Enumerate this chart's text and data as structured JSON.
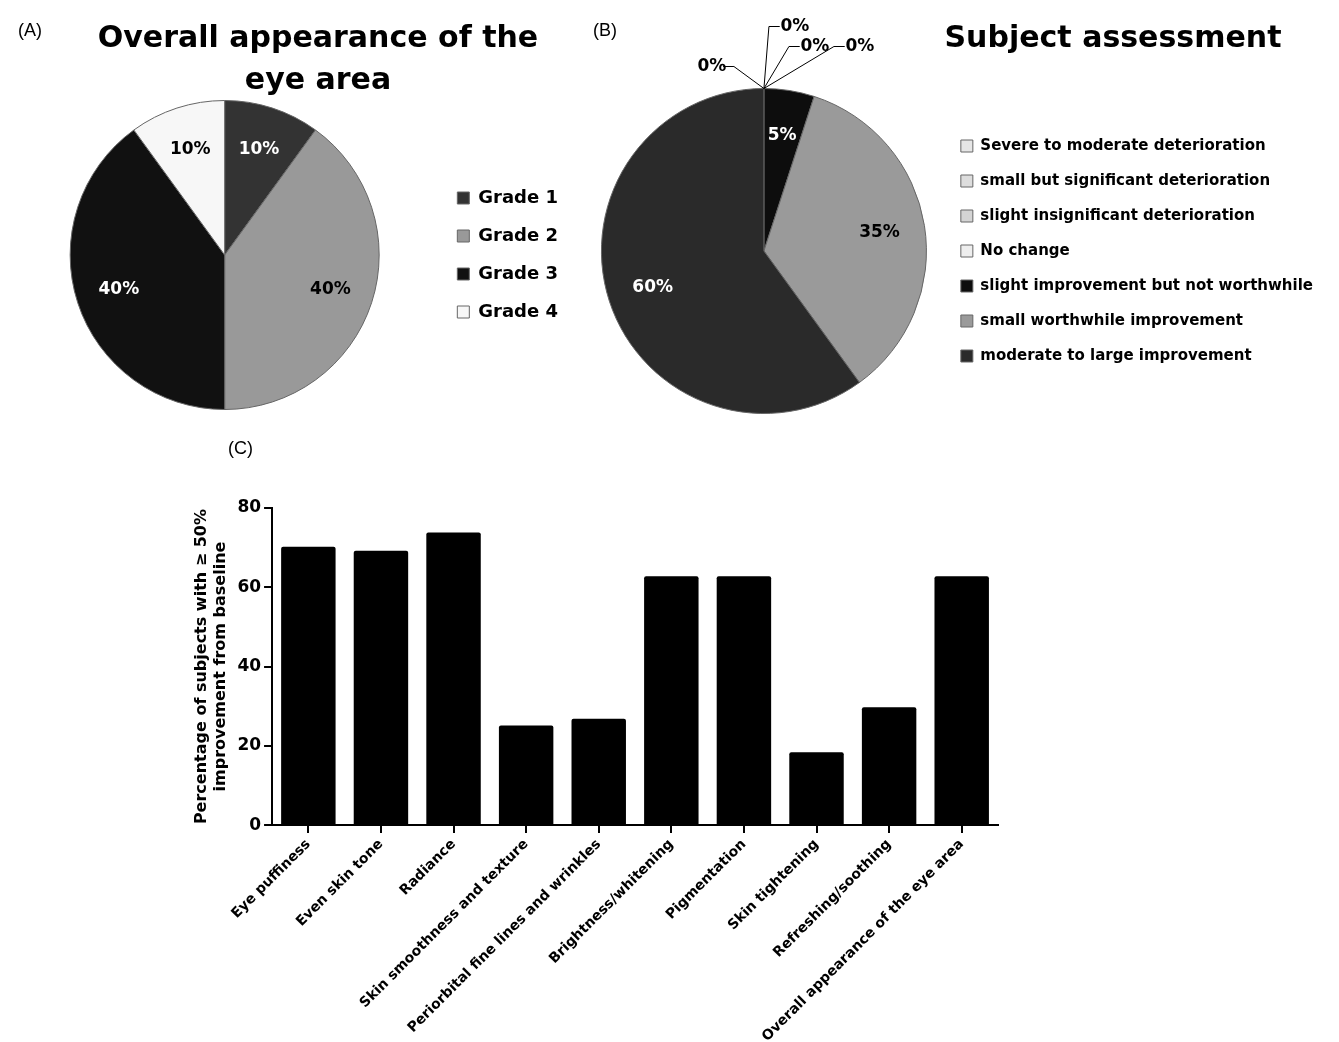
{
  "chart_data": [
    {
      "type": "pie",
      "title": "Overall appearance of the eye area",
      "annotations": [
        "(A)"
      ],
      "categories": [
        "Grade 1",
        "Grade 2",
        "Grade 3",
        "Grade 4"
      ],
      "values": [
        10,
        40,
        40,
        10
      ],
      "value_labels": [
        "10%",
        "40%",
        "40%",
        "10%"
      ],
      "colors": [
        "#333333",
        "#999999",
        "#111111",
        "#f7f7f7"
      ],
      "legend": "right"
    },
    {
      "type": "pie",
      "title": "Subject assessment",
      "annotations": [
        "(B)"
      ],
      "categories": [
        "Severe to moderate deterioration",
        "small but significant deterioration",
        "slight insignificant deterioration",
        "No change",
        "slight improvement but not worthwhile",
        "small worthwhile improvement",
        "moderate to large improvement"
      ],
      "values": [
        0,
        0,
        0,
        0,
        5,
        35,
        60
      ],
      "value_labels": [
        "0%",
        "0%",
        "0%",
        "0%",
        "5%",
        "35%",
        "60%"
      ],
      "colors": [
        "#e6e6e6",
        "#dddddd",
        "#d4d4d4",
        "#eeeeee",
        "#0d0d0d",
        "#9a9a9a",
        "#2a2a2a"
      ],
      "legend": "right"
    },
    {
      "type": "bar",
      "annotations": [
        "(C)"
      ],
      "ylabel": "Percentage of subjects with ≥ 50% improvement from baseline",
      "categories": [
        "Eye puffiness",
        "Even skin tone",
        "Radiance",
        "Skin smoothness and texture",
        "Periorbital fine lines and wrinkles",
        "Brightness/whitening",
        "Pigmentation",
        "Skin tightening",
        "Refreshing/soothing",
        "Overall appearance of the eye area"
      ],
      "values": [
        70.2,
        69.2,
        73.8,
        25.1,
        26.8,
        62.8,
        62.8,
        18.4,
        29.7,
        62.8
      ],
      "color": "#000000",
      "ylim": [
        0,
        80
      ],
      "yticks": [
        0,
        20,
        40,
        60,
        80
      ],
      "grid": false,
      "legend": false
    }
  ]
}
